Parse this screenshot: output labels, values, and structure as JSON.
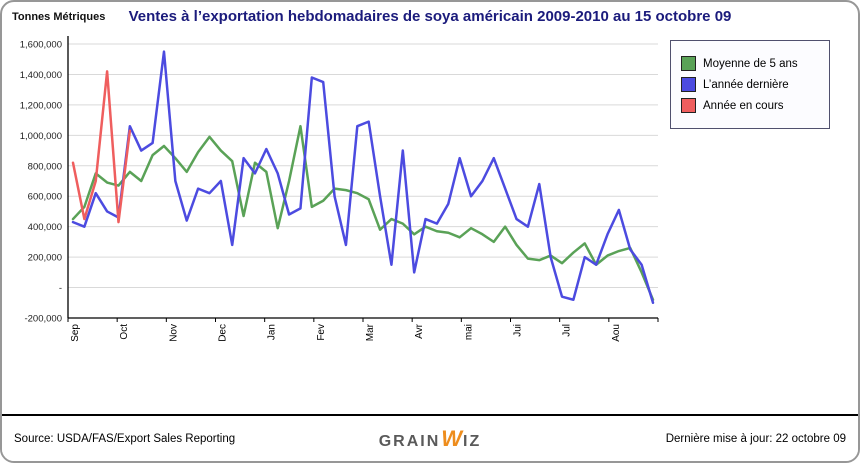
{
  "header": {
    "title": "Ventes à l’exportation hebdomadaires de soya américain 2009-2010 au 15 octobre 09",
    "unit_label": "Tonnes Métriques"
  },
  "chart_data": {
    "type": "line",
    "title": "Ventes à l’exportation hebdomadaires de soya américain 2009-2010 au 15 octobre 09",
    "ylabel": "Tonnes Métriques",
    "x_resolution": "weekly",
    "weeks_per_year": 52,
    "categories_months": [
      "Sep",
      "Oct",
      "Nov",
      "Dec",
      "Jan",
      "Fev",
      "Mar",
      "Avr",
      "mai",
      "Jui",
      "Jul",
      "Aou"
    ],
    "ylim": [
      -200000,
      1600000
    ],
    "y_ticks": [
      -200000,
      0,
      200000,
      400000,
      600000,
      800000,
      1000000,
      1200000,
      1400000,
      1600000
    ],
    "y_tick_labels": [
      "-200,000",
      "-",
      "200,000",
      "400,000",
      "600,000",
      "800,000",
      "1,000,000",
      "1,200,000",
      "1,400,000",
      "1,600,000"
    ],
    "grid": true,
    "legend_position": "top-right",
    "series": [
      {
        "name": "Moyenne de 5 ans",
        "color": "#5aa257",
        "values": [
          450000,
          530000,
          750000,
          690000,
          670000,
          760000,
          700000,
          870000,
          930000,
          850000,
          760000,
          890000,
          990000,
          900000,
          830000,
          470000,
          820000,
          760000,
          390000,
          700000,
          1060000,
          530000,
          570000,
          650000,
          640000,
          620000,
          580000,
          380000,
          450000,
          420000,
          350000,
          400000,
          370000,
          360000,
          330000,
          390000,
          350000,
          300000,
          400000,
          280000,
          190000,
          180000,
          210000,
          160000,
          230000,
          290000,
          150000,
          210000,
          240000,
          260000,
          100000,
          -80000
        ]
      },
      {
        "name": "L’année dernière",
        "color": "#4c4be0",
        "values": [
          430000,
          400000,
          620000,
          500000,
          460000,
          1060000,
          900000,
          950000,
          1550000,
          700000,
          440000,
          650000,
          620000,
          700000,
          280000,
          850000,
          750000,
          910000,
          750000,
          480000,
          520000,
          1380000,
          1350000,
          600000,
          280000,
          1060000,
          1090000,
          600000,
          150000,
          900000,
          100000,
          450000,
          420000,
          550000,
          850000,
          600000,
          700000,
          850000,
          650000,
          450000,
          400000,
          680000,
          200000,
          -60000,
          -80000,
          200000,
          150000,
          350000,
          510000,
          250000,
          150000,
          -100000
        ]
      },
      {
        "name": "Année en cours",
        "color": "#ef5e5e",
        "values": [
          820000,
          450000,
          700000,
          1420000,
          430000,
          1030000
        ]
      }
    ]
  },
  "footer": {
    "source": "Source: USDA/FAS/Export Sales Reporting",
    "updated": "Dernière mise à jour: 22 octobre 09",
    "logo": {
      "part1": "GRAIN",
      "part2": "W",
      "part3": "IZ"
    }
  }
}
